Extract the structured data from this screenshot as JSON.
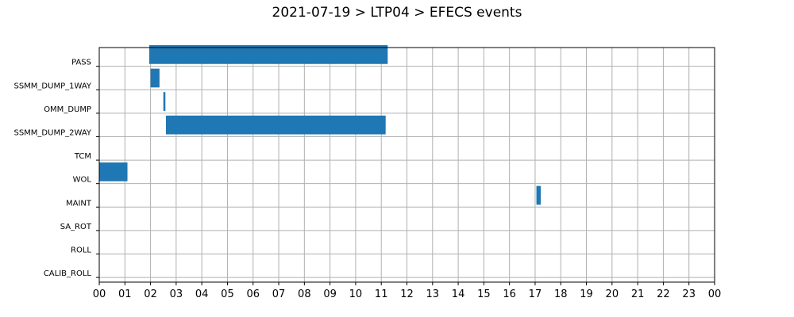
{
  "chart_data": {
    "type": "gantt",
    "title": "2021-07-19 > LTP04 > EFECS events",
    "xlabel": "",
    "ylabel": "",
    "x_unit": "hour of day",
    "xlim": [
      0,
      24
    ],
    "x_ticks": [
      "00",
      "01",
      "02",
      "03",
      "04",
      "05",
      "06",
      "07",
      "08",
      "09",
      "10",
      "11",
      "12",
      "13",
      "14",
      "15",
      "16",
      "17",
      "18",
      "19",
      "20",
      "21",
      "22",
      "23",
      "00"
    ],
    "categories": [
      "PASS",
      "SSMM_DUMP_1WAY",
      "OMM_DUMP",
      "SSMM_DUMP_2WAY",
      "TCM",
      "WOL",
      "MAINT",
      "SA_ROT",
      "ROLL",
      "CALIB_ROLL"
    ],
    "grid": true,
    "bar_color": "#1f77b4",
    "events": [
      {
        "category": "PASS",
        "start": 1.95,
        "end": 11.25
      },
      {
        "category": "SSMM_DUMP_1WAY",
        "start": 2.0,
        "end": 2.35
      },
      {
        "category": "OMM_DUMP",
        "start": 2.5,
        "end": 2.58
      },
      {
        "category": "SSMM_DUMP_2WAY",
        "start": 2.6,
        "end": 11.17
      },
      {
        "category": "WOL",
        "start": 0.0,
        "end": 1.1
      },
      {
        "category": "MAINT",
        "start": 17.05,
        "end": 17.22
      }
    ]
  }
}
